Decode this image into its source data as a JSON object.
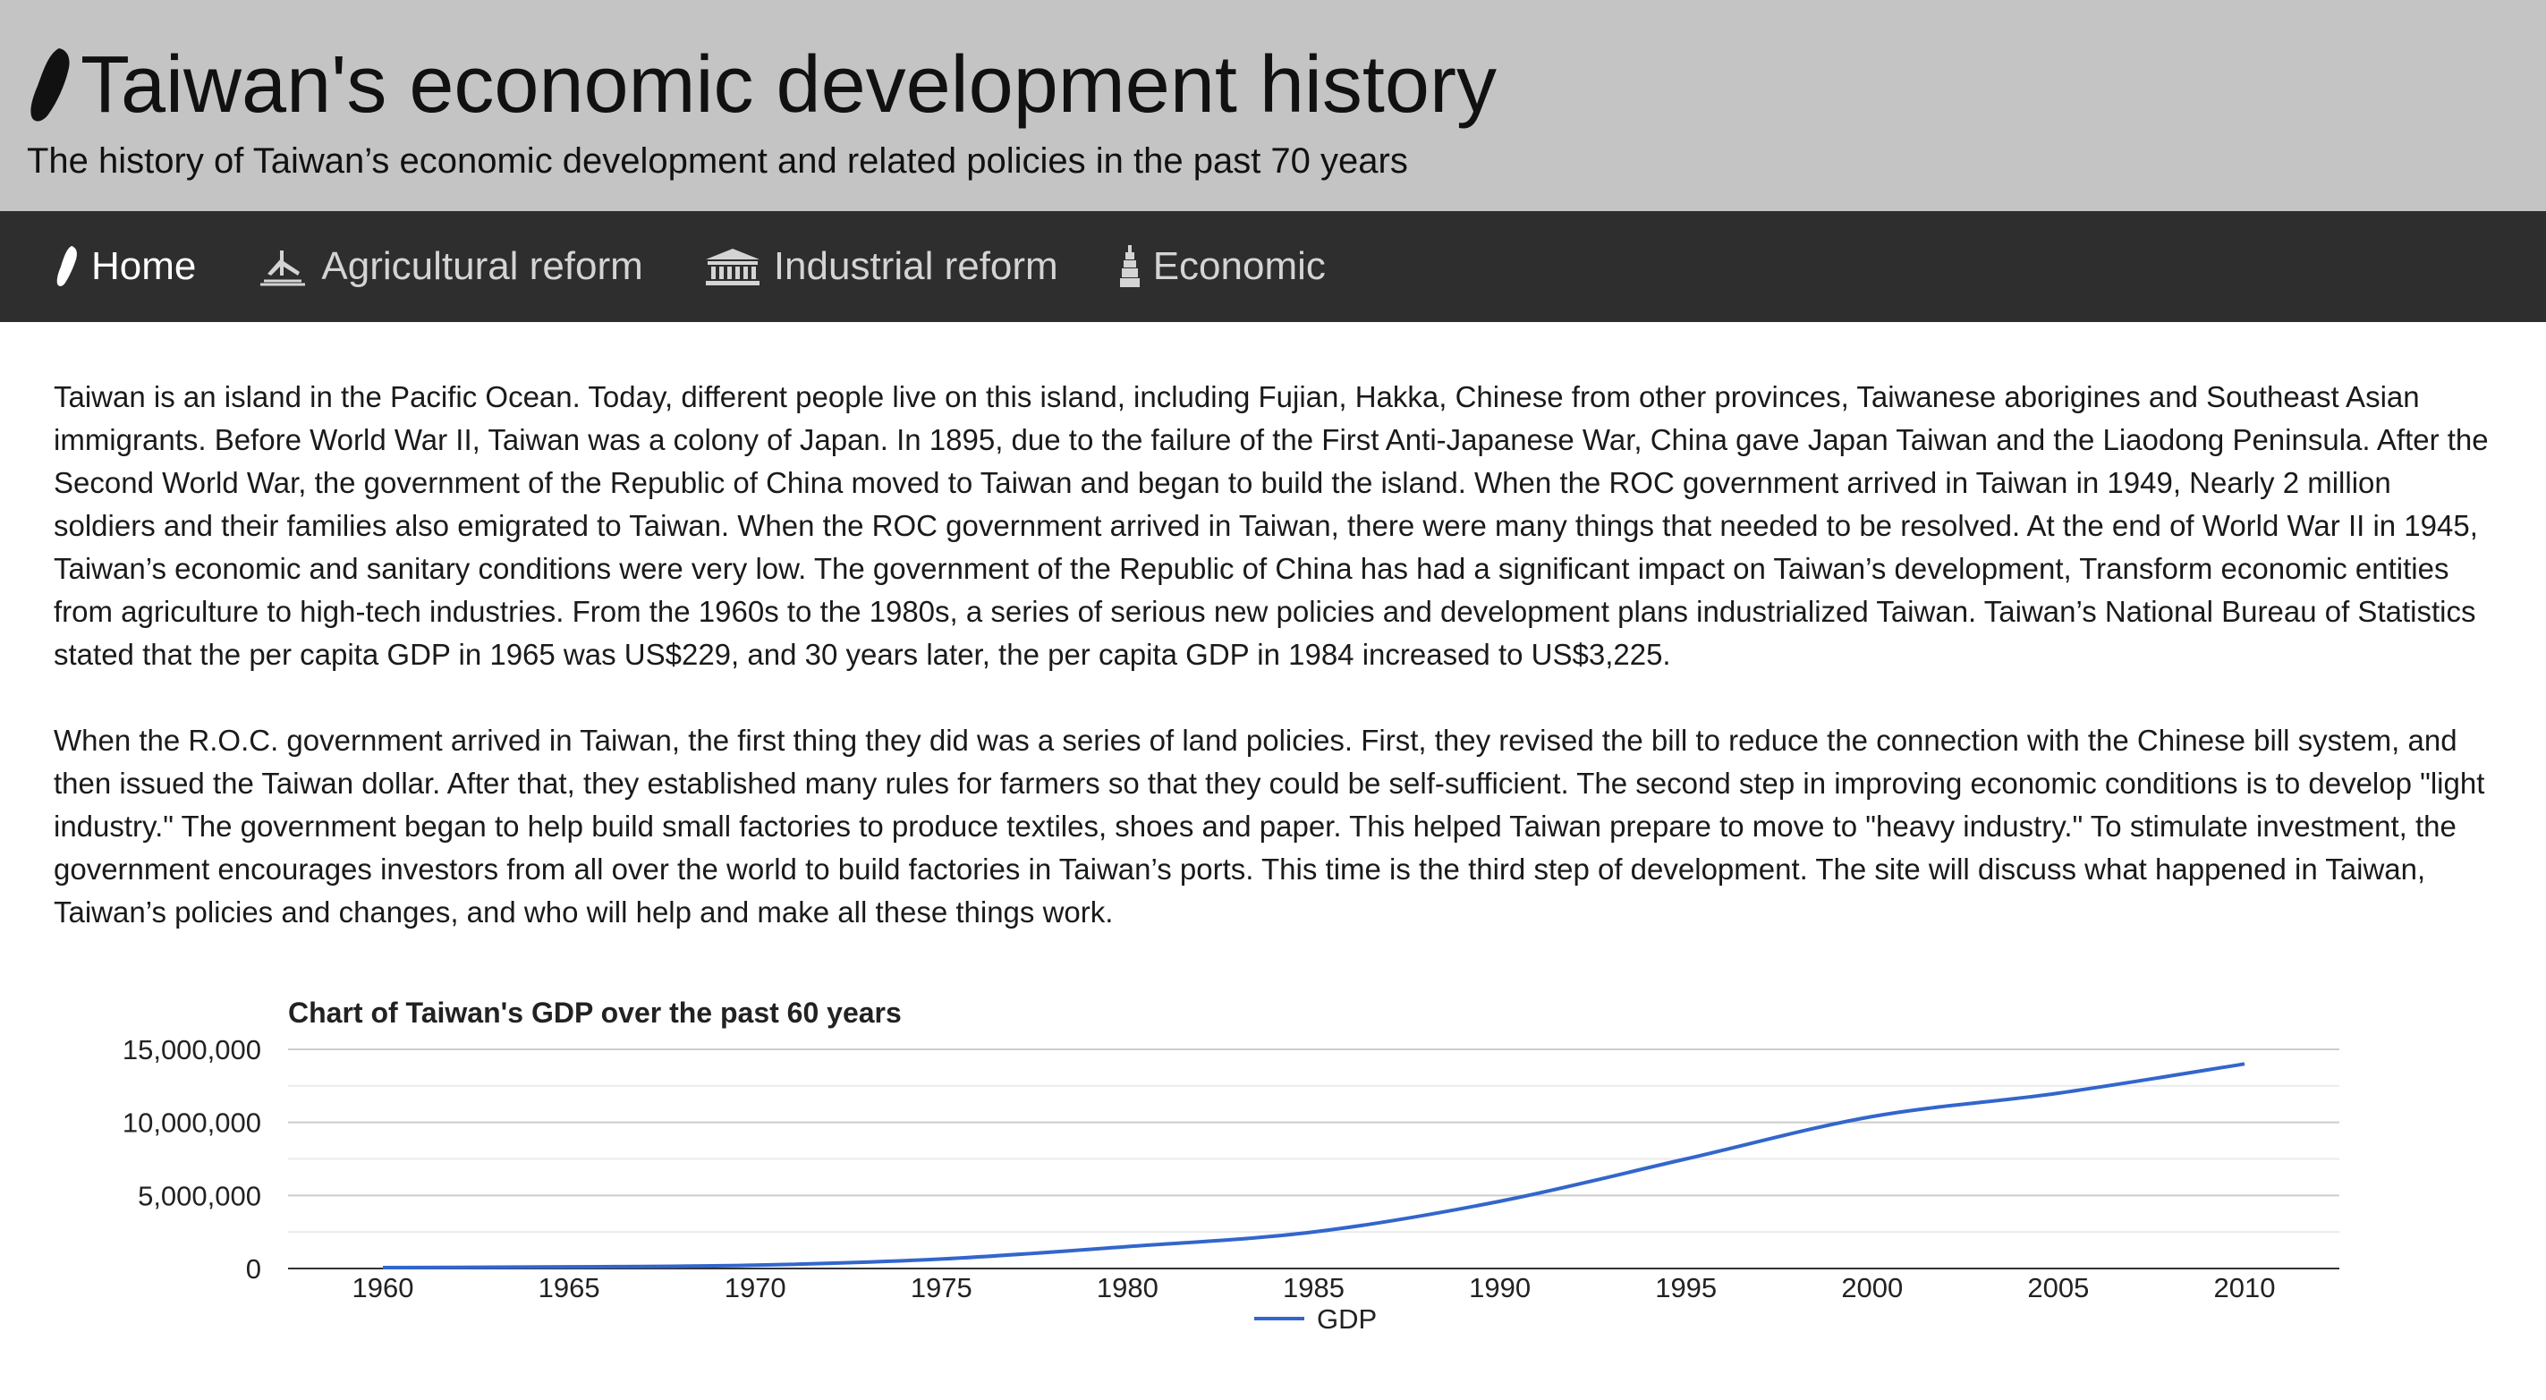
{
  "header": {
    "title": "Taiwan's economic development history",
    "subtitle": "The history of Taiwan’s economic development and related policies in the past 70 years",
    "logo_icon": "taiwan-island-icon"
  },
  "nav": {
    "items": [
      {
        "label": "Home",
        "icon": "taiwan-island-icon",
        "active": true
      },
      {
        "label": "Agricultural reform",
        "icon": "farmer-icon",
        "active": false
      },
      {
        "label": "Industrial reform",
        "icon": "building-icon",
        "active": false
      },
      {
        "label": "Economic",
        "icon": "tower-icon",
        "active": false
      }
    ]
  },
  "content": {
    "paragraphs": [
      "Taiwan is an island in the Pacific Ocean. Today, different people live on this island, including Fujian, Hakka, Chinese from other provinces, Taiwanese aborigines and Southeast Asian immigrants. Before World War II, Taiwan was a colony of Japan. In 1895, due to the failure of the First Anti-Japanese War, China gave Japan Taiwan and the Liaodong Peninsula. After the Second World War, the government of the Republic of China moved to Taiwan and began to build the island. When the ROC government arrived in Taiwan in 1949, Nearly 2 million soldiers and their families also emigrated to Taiwan. When the ROC government arrived in Taiwan, there were many things that needed to be resolved. At the end of World War II in 1945, Taiwan’s economic and sanitary conditions were very low. The government of the Republic of China has had a significant impact on Taiwan’s development, Transform economic entities from agriculture to high-tech industries. From the 1960s to the 1980s, a series of serious new policies and development plans industrialized Taiwan. Taiwan’s National Bureau of Statistics stated that the per capita GDP in 1965 was US$229, and 30 years later, the per capita GDP in 1984 increased to US$3,225.",
      "When the R.O.C. government arrived in Taiwan, the first thing they did was a series of land policies. First, they revised the bill to reduce the connection with the Chinese bill system, and then issued the Taiwan dollar. After that, they established many rules for farmers so that they could be self-sufficient. The second step in improving economic conditions is to develop \"light industry.\" The government began to help build small factories to produce textiles, shoes and paper. This helped Taiwan prepare to move to \"heavy industry.\" To stimulate investment, the government encourages investors from all over the world to build factories in Taiwan’s ports. This time is the third step of development. The site will discuss what happened in Taiwan, Taiwan’s policies and changes, and who will help and make all these things work."
    ]
  },
  "chart_data": {
    "type": "line",
    "title": "Chart of Taiwan's GDP over the past 60 years",
    "xlabel": "",
    "ylabel": "",
    "x": [
      1960,
      1965,
      1970,
      1975,
      1980,
      1985,
      1990,
      1995,
      2000,
      2005,
      2010
    ],
    "xticks": [
      "1960",
      "1965",
      "1970",
      "1975",
      "1980",
      "1985",
      "1990",
      "1995",
      "2000",
      "2005",
      "2010"
    ],
    "yticks": [
      "0",
      "5,000,000",
      "10,000,000",
      "15,000,000"
    ],
    "ylim": [
      0,
      15000000
    ],
    "grid": true,
    "legend": "bottom",
    "series": [
      {
        "name": "GDP",
        "color": "#3366cc",
        "values": [
          62000,
          115000,
          230000,
          650000,
          1500000,
          2500000,
          4600000,
          7500000,
          10400000,
          12000000,
          14000000
        ]
      }
    ]
  }
}
